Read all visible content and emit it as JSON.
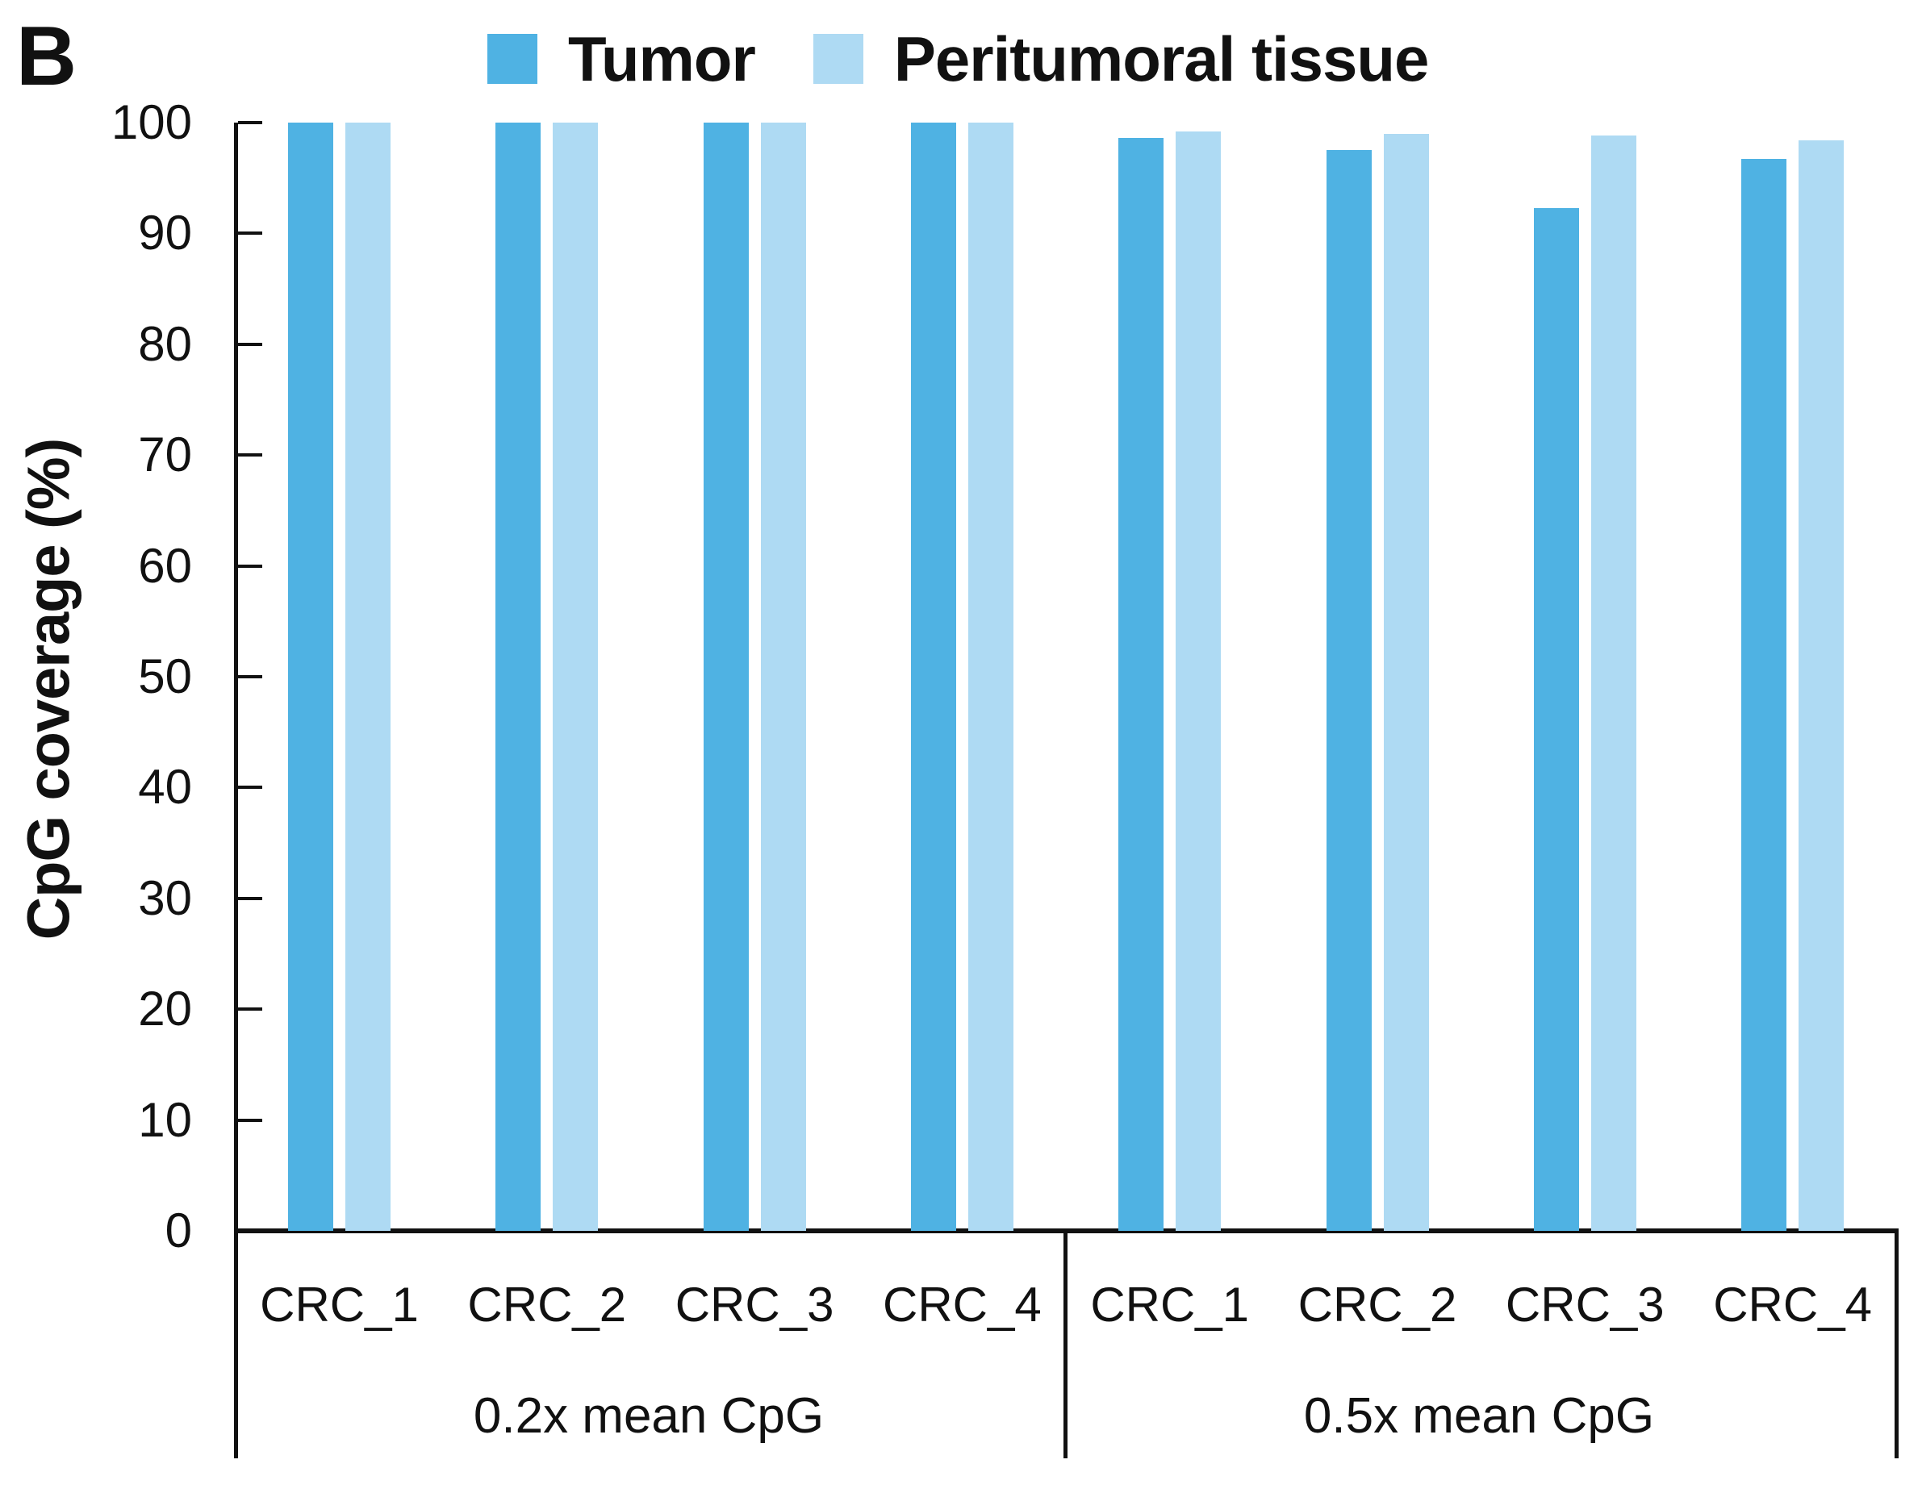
{
  "panel_label": "B",
  "legend": {
    "items": [
      {
        "label": "Tumor",
        "color": "#4FB2E3"
      },
      {
        "label": "Peritumoral tissue",
        "color": "#AEDAF3"
      }
    ]
  },
  "y_axis": {
    "title": "CpG coverage (%)",
    "tick_labels": [
      "0",
      "10",
      "20",
      "30",
      "40",
      "50",
      "60",
      "70",
      "80",
      "90",
      "100"
    ]
  },
  "chart_data": {
    "type": "bar",
    "title": "",
    "xlabel": "",
    "ylabel": "CpG coverage (%)",
    "ylim": [
      0,
      100
    ],
    "yticks": [
      0,
      10,
      20,
      30,
      40,
      50,
      60,
      70,
      80,
      90,
      100
    ],
    "grid": false,
    "legend_position": "top",
    "series_colors": {
      "Tumor": "#4FB2E3",
      "Peritumoral tissue": "#AEDAF3"
    },
    "groups": [
      {
        "label": "0.2x mean CpG",
        "categories": [
          "CRC_1",
          "CRC_2",
          "CRC_3",
          "CRC_4"
        ],
        "series": [
          {
            "name": "Tumor",
            "values": [
              100,
              100,
              100,
              100
            ]
          },
          {
            "name": "Peritumoral tissue",
            "values": [
              100,
              100,
              100,
              100
            ]
          }
        ]
      },
      {
        "label": "0.5x mean CpG",
        "categories": [
          "CRC_1",
          "CRC_2",
          "CRC_3",
          "CRC_4"
        ],
        "series": [
          {
            "name": "Tumor",
            "values": [
              98.6,
              97.5,
              92.3,
              96.7
            ]
          },
          {
            "name": "Peritumoral tissue",
            "values": [
              99.2,
              99.0,
              98.8,
              98.4
            ]
          }
        ]
      }
    ]
  }
}
